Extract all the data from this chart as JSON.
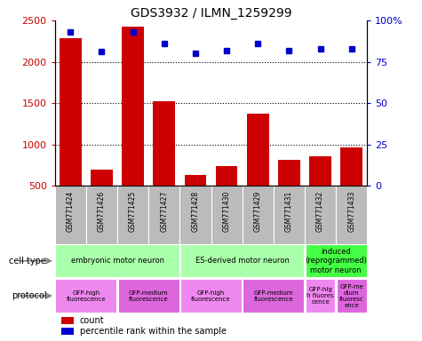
{
  "title": "GDS3932 / ILMN_1259299",
  "samples": [
    "GSM771424",
    "GSM771426",
    "GSM771425",
    "GSM771427",
    "GSM771428",
    "GSM771430",
    "GSM771429",
    "GSM771431",
    "GSM771432",
    "GSM771433"
  ],
  "counts": [
    2290,
    700,
    2430,
    1520,
    630,
    740,
    1370,
    810,
    860,
    960
  ],
  "percentiles": [
    93,
    81,
    93,
    86,
    80,
    82,
    86,
    82,
    83,
    83
  ],
  "bar_color": "#cc0000",
  "dot_color": "#0000cc",
  "ylim_left": [
    500,
    2500
  ],
  "ylim_right": [
    0,
    100
  ],
  "yticks_left": [
    500,
    1000,
    1500,
    2000,
    2500
  ],
  "yticks_right": [
    0,
    25,
    50,
    75,
    100
  ],
  "grid_lines": [
    1000,
    1500,
    2000
  ],
  "cell_type_groups": [
    {
      "label": "embryonic motor neuron",
      "start": 0,
      "end": 3,
      "color": "#aaffaa"
    },
    {
      "label": "ES-derived motor neuron",
      "start": 4,
      "end": 7,
      "color": "#aaffaa"
    },
    {
      "label": "induced\n(reprogrammed)\nmotor neuron",
      "start": 8,
      "end": 9,
      "color": "#44ff44"
    }
  ],
  "protocol_groups": [
    {
      "label": "GFP-high\nfluorescence",
      "start": 0,
      "end": 1,
      "color": "#ee88ee"
    },
    {
      "label": "GFP-medium\nfluorescence",
      "start": 2,
      "end": 3,
      "color": "#dd66dd"
    },
    {
      "label": "GFP-high\nfluorescence",
      "start": 4,
      "end": 5,
      "color": "#ee88ee"
    },
    {
      "label": "GFP-medium\nfluorescence",
      "start": 6,
      "end": 7,
      "color": "#dd66dd"
    },
    {
      "label": "GFP-hig\nh fluores\ncence",
      "start": 8,
      "end": 8,
      "color": "#ee88ee"
    },
    {
      "label": "GFP-me\ndium\nfluoresc\nence",
      "start": 9,
      "end": 9,
      "color": "#dd66dd"
    }
  ],
  "sample_bg_color": "#bbbbbb",
  "left_axis_color": "#cc0000",
  "right_axis_color": "#0000cc",
  "legend_count_color": "#cc0000",
  "legend_pct_color": "#0000cc"
}
